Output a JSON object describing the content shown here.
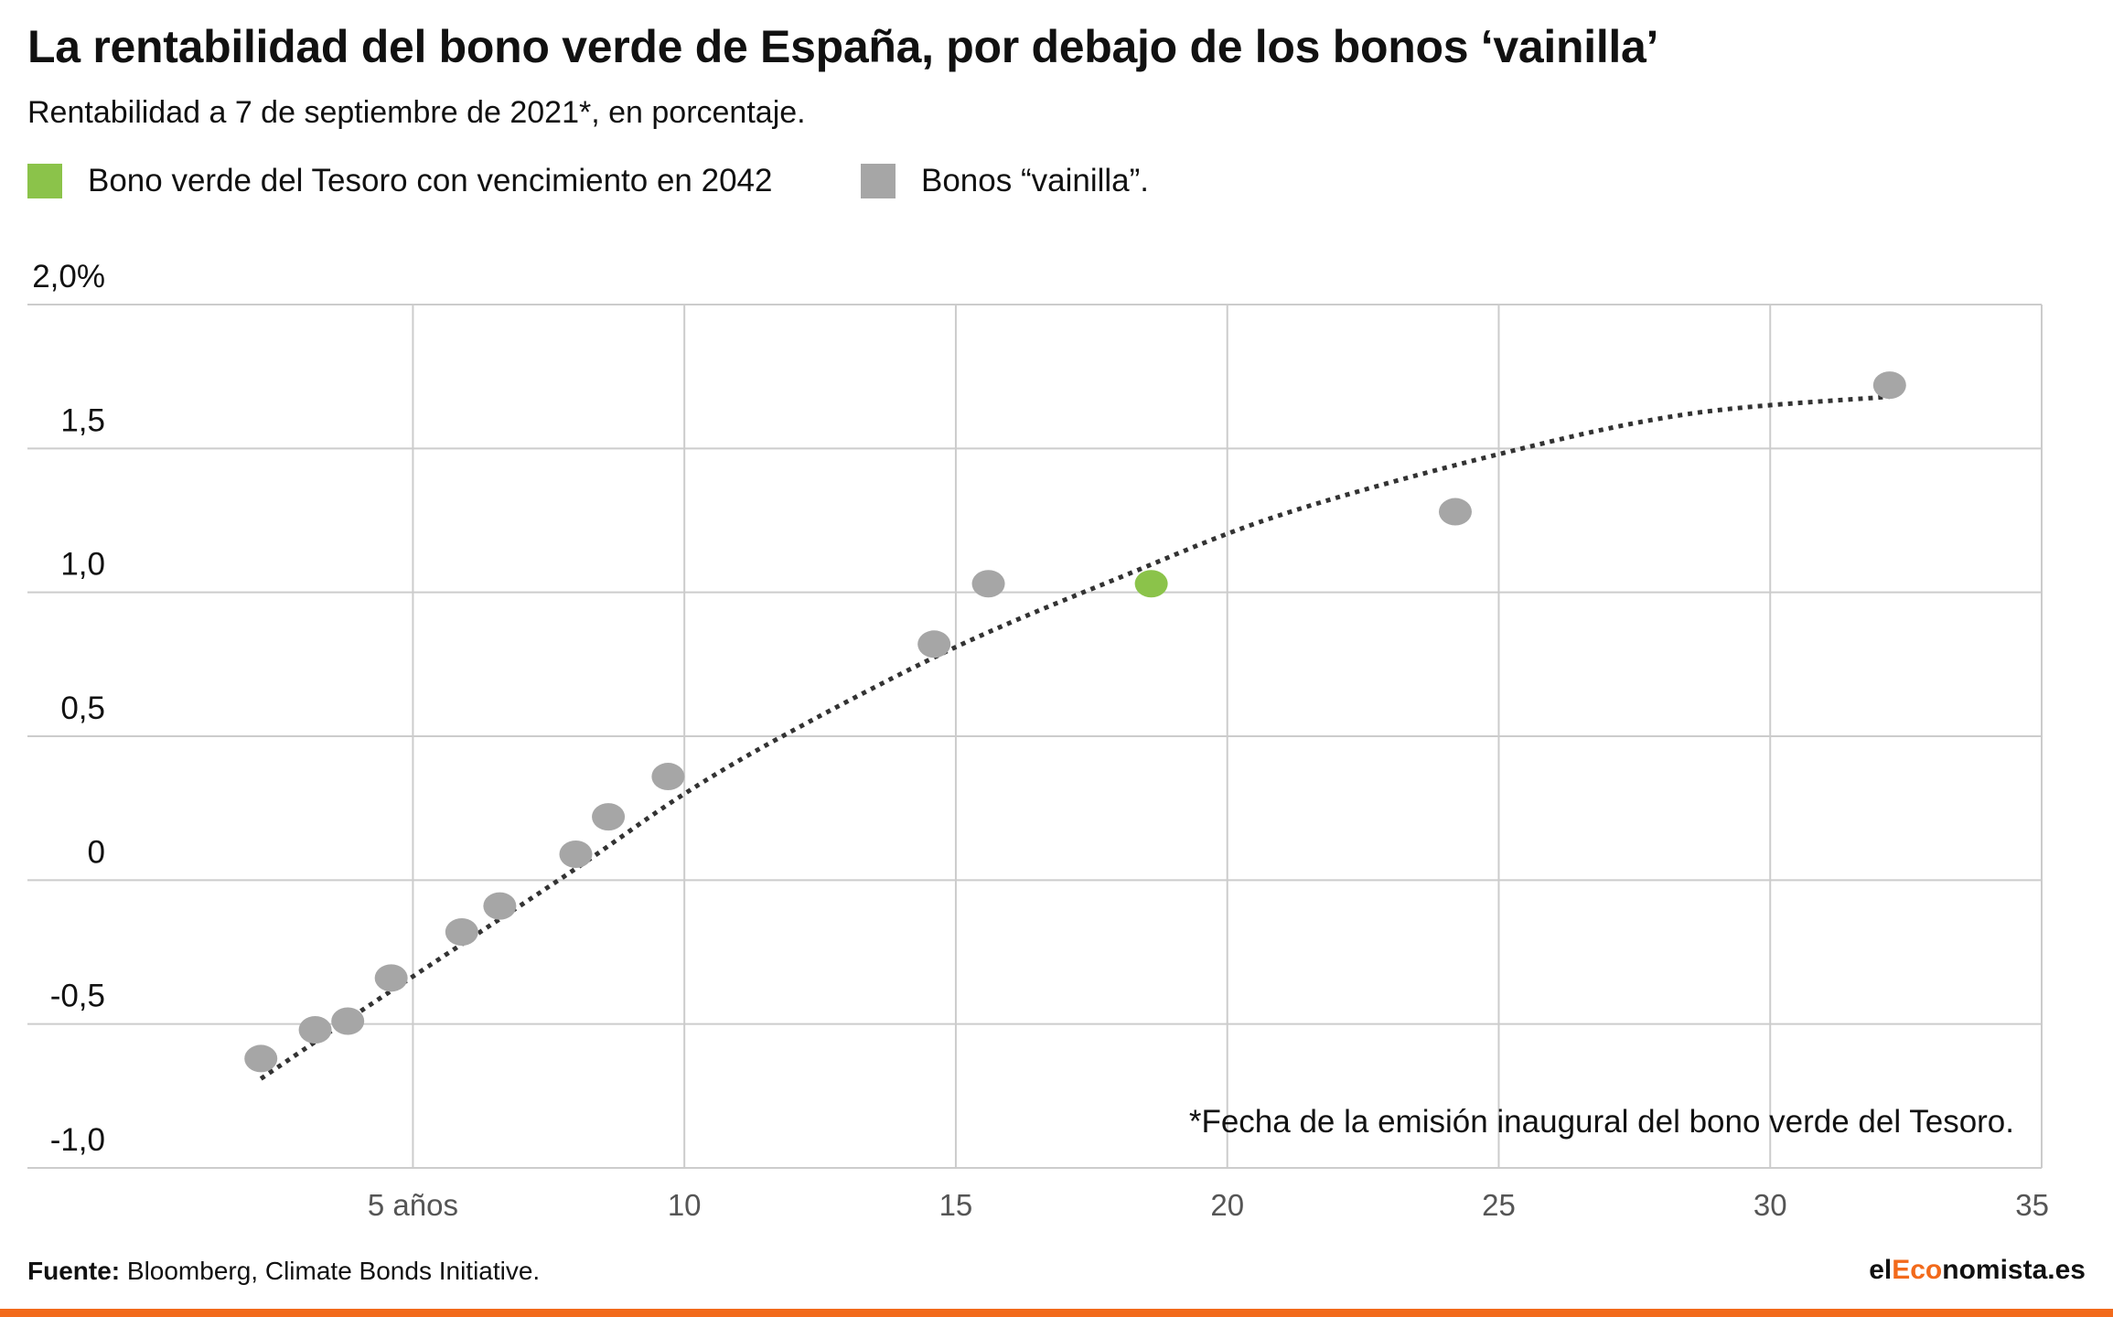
{
  "header": {
    "title": "La rentabilidad del bono verde de España, por debajo de los bonos ‘vainilla’",
    "subtitle": "Rentabilidad a 7 de septiembre de 2021*, en porcentaje."
  },
  "legend": {
    "green_label": "Bono verde del Tesoro con vencimiento en 2042",
    "grey_label": "Bonos “vainilla”."
  },
  "chart_data": {
    "type": "scatter",
    "x_ticks": [
      "5 años",
      "10",
      "15",
      "20",
      "25",
      "30",
      "35"
    ],
    "x_tick_values": [
      5,
      10,
      15,
      20,
      25,
      30,
      35
    ],
    "y_ticks": [
      "2,0%",
      "1,5",
      "1,0",
      "0,5",
      "0",
      "-0,5",
      "-1,0"
    ],
    "y_tick_values": [
      2.0,
      1.5,
      1.0,
      0.5,
      0,
      -0.5,
      -1.0
    ],
    "xlim": [
      -2.1,
      35
    ],
    "ylim": [
      -1.0,
      2.0
    ],
    "grid": true,
    "series": [
      {
        "name": "Bonos “vainilla”.",
        "color": "#a6a6a6",
        "points": [
          {
            "x": 2.2,
            "y": -0.62
          },
          {
            "x": 3.2,
            "y": -0.52
          },
          {
            "x": 3.8,
            "y": -0.49
          },
          {
            "x": 4.6,
            "y": -0.34
          },
          {
            "x": 5.9,
            "y": -0.18
          },
          {
            "x": 6.6,
            "y": -0.09
          },
          {
            "x": 8.0,
            "y": 0.09
          },
          {
            "x": 8.6,
            "y": 0.22
          },
          {
            "x": 9.7,
            "y": 0.36
          },
          {
            "x": 14.6,
            "y": 0.82
          },
          {
            "x": 15.6,
            "y": 1.03
          },
          {
            "x": 24.2,
            "y": 1.28
          },
          {
            "x": 32.2,
            "y": 1.72
          }
        ]
      },
      {
        "name": "Bono verde del Tesoro con vencimiento en 2042",
        "color": "#8bc34a",
        "points": [
          {
            "x": 18.6,
            "y": 1.03
          }
        ]
      }
    ],
    "trend": {
      "color": "#333333",
      "points": [
        {
          "x": 2.2,
          "y": -0.69
        },
        {
          "x": 4,
          "y": -0.46
        },
        {
          "x": 6,
          "y": -0.21
        },
        {
          "x": 8,
          "y": 0.04
        },
        {
          "x": 10,
          "y": 0.3
        },
        {
          "x": 12,
          "y": 0.52
        },
        {
          "x": 15,
          "y": 0.81
        },
        {
          "x": 18,
          "y": 1.05
        },
        {
          "x": 21,
          "y": 1.27
        },
        {
          "x": 25,
          "y": 1.48
        },
        {
          "x": 28.5,
          "y": 1.62
        },
        {
          "x": 32.2,
          "y": 1.68
        }
      ]
    },
    "annotation": "*Fecha de la emisión inaugural del bono verde del Tesoro."
  },
  "footer": {
    "source_label": "Fuente:",
    "source_text": "Bloomberg, Climate Bonds Initiative.",
    "brand_prefix": "el",
    "brand_accent": "Eco",
    "brand_suffix": "nomista.es"
  },
  "colors": {
    "green": "#8bc34a",
    "grey": "#a6a6a6",
    "accent": "#f26a1b",
    "grid": "#cccccc"
  }
}
